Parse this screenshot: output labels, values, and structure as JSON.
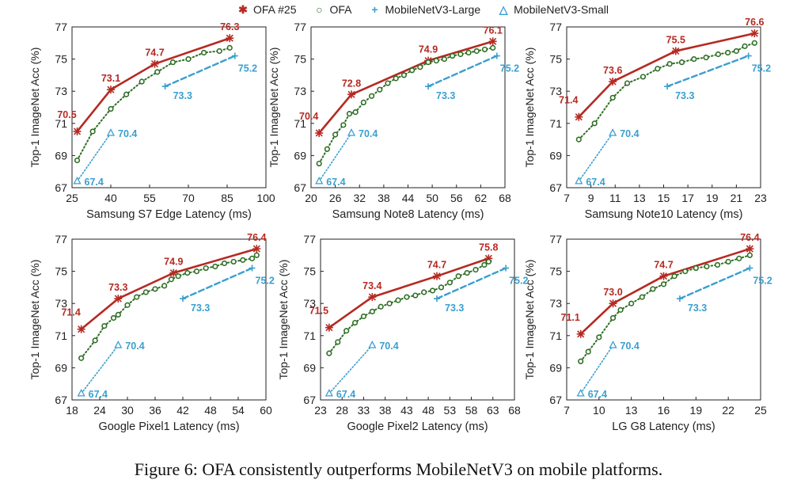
{
  "legend": {
    "ofa25": "OFA #25",
    "ofa": "OFA",
    "mbv3_large": "MobileNetV3-Large",
    "mbv3_small": "MobileNetV3-Small"
  },
  "colors": {
    "ofa25": "#b52a22",
    "ofa": "#2e6f24",
    "mbv3_large": "#3a9fcf",
    "mbv3_small": "#3a9fcf",
    "axis": "#222222"
  },
  "caption": "Figure 6: OFA consistently outperforms MobileNetV3 on mobile platforms.",
  "chart_data": [
    {
      "type": "line",
      "xlabel": "Samsung S7 Edge Latency (ms)",
      "ylabel": "Top-1 ImageNet Acc (%)",
      "xlim": [
        25,
        100
      ],
      "ylim": [
        67,
        77
      ],
      "xticks": [
        25,
        40,
        55,
        70,
        85,
        100
      ],
      "yticks": [
        67,
        69,
        71,
        73,
        75,
        77
      ],
      "series": [
        {
          "name": "OFA #25",
          "x": [
            27,
            40,
            57,
            86
          ],
          "y": [
            70.5,
            73.1,
            74.7,
            76.3
          ],
          "labels": [
            "70.5",
            "73.1",
            "74.7",
            "76.3"
          ]
        },
        {
          "name": "OFA",
          "x": [
            27,
            33,
            40,
            46,
            52,
            58,
            64,
            70,
            76,
            82,
            86
          ],
          "y": [
            68.7,
            70.5,
            71.9,
            72.8,
            73.6,
            74.2,
            74.8,
            75.0,
            75.4,
            75.5,
            75.7
          ],
          "labels": []
        },
        {
          "name": "MobileNetV3-Large",
          "x": [
            61,
            88
          ],
          "y": [
            73.3,
            75.2
          ],
          "labels": [
            "73.3",
            "75.2"
          ]
        },
        {
          "name": "MobileNetV3-Small",
          "x": [
            27,
            40
          ],
          "y": [
            67.4,
            70.4
          ],
          "labels": [
            "67.4",
            "70.4"
          ]
        }
      ]
    },
    {
      "type": "line",
      "xlabel": "Samsung Note8 Latency (ms)",
      "ylabel": "Top-1 ImageNet Acc (%)",
      "xlim": [
        20,
        68
      ],
      "ylim": [
        67,
        77
      ],
      "xticks": [
        20,
        26,
        32,
        38,
        44,
        50,
        56,
        62,
        68
      ],
      "yticks": [
        67,
        69,
        71,
        73,
        75,
        77
      ],
      "series": [
        {
          "name": "OFA #25",
          "x": [
            22,
            30,
            49,
            65
          ],
          "y": [
            70.4,
            72.8,
            74.9,
            76.1
          ],
          "labels": [
            "70.4",
            "72.8",
            "74.9",
            "76.1"
          ]
        },
        {
          "name": "OFA",
          "x": [
            22,
            24,
            26,
            28,
            29.5,
            31,
            33,
            35,
            37,
            39,
            41,
            43,
            45,
            47,
            49,
            51,
            53,
            55,
            57,
            59,
            61,
            63,
            65
          ],
          "y": [
            68.5,
            69.4,
            70.3,
            70.9,
            71.6,
            71.7,
            72.3,
            72.7,
            73.1,
            73.5,
            73.8,
            74.0,
            74.3,
            74.5,
            74.8,
            74.9,
            75.0,
            75.2,
            75.3,
            75.4,
            75.5,
            75.6,
            75.7
          ],
          "labels": []
        },
        {
          "name": "MobileNetV3-Large",
          "x": [
            49,
            66
          ],
          "y": [
            73.3,
            75.2
          ],
          "labels": [
            "73.3",
            "75.2"
          ]
        },
        {
          "name": "MobileNetV3-Small",
          "x": [
            22,
            30
          ],
          "y": [
            67.4,
            70.4
          ],
          "labels": [
            "67.4",
            "70.4"
          ]
        }
      ]
    },
    {
      "type": "line",
      "xlabel": "Samsung Note10 Latency (ms)",
      "ylabel": "Top-1 ImageNet Acc (%)",
      "xlim": [
        7,
        23
      ],
      "ylim": [
        67,
        77
      ],
      "xticks": [
        7,
        9,
        11,
        13,
        15,
        17,
        19,
        21,
        23
      ],
      "yticks": [
        67,
        69,
        71,
        73,
        75,
        77
      ],
      "series": [
        {
          "name": "OFA #25",
          "x": [
            8,
            10.8,
            16,
            22.5
          ],
          "y": [
            71.4,
            73.6,
            75.5,
            76.6
          ],
          "labels": [
            "71.4",
            "73.6",
            "75.5",
            "76.6"
          ]
        },
        {
          "name": "OFA",
          "x": [
            8,
            9.3,
            10.8,
            12,
            13.3,
            14.5,
            15.5,
            16.5,
            17.5,
            18.5,
            19.5,
            20.3,
            21,
            21.7,
            22.5
          ],
          "y": [
            70.0,
            71.0,
            72.6,
            73.5,
            73.9,
            74.4,
            74.7,
            74.8,
            75.0,
            75.1,
            75.3,
            75.4,
            75.5,
            75.8,
            76.0
          ],
          "labels": []
        },
        {
          "name": "MobileNetV3-Large",
          "x": [
            15.3,
            22
          ],
          "y": [
            73.3,
            75.2
          ],
          "labels": [
            "73.3",
            "75.2"
          ]
        },
        {
          "name": "MobileNetV3-Small",
          "x": [
            8,
            10.8
          ],
          "y": [
            67.4,
            70.4
          ],
          "labels": [
            "67.4",
            "70.4"
          ]
        }
      ]
    },
    {
      "type": "line",
      "xlabel": "Google Pixel1 Latency (ms)",
      "ylabel": "Top-1 ImageNet Acc (%)",
      "xlim": [
        18,
        60
      ],
      "ylim": [
        67,
        77
      ],
      "xticks": [
        18,
        24,
        30,
        36,
        42,
        48,
        54,
        60
      ],
      "yticks": [
        67,
        69,
        71,
        73,
        75,
        77
      ],
      "series": [
        {
          "name": "OFA #25",
          "x": [
            20,
            28,
            40,
            58
          ],
          "y": [
            71.4,
            73.3,
            74.9,
            76.4
          ],
          "labels": [
            "71.4",
            "73.3",
            "74.9",
            "76.4"
          ]
        },
        {
          "name": "OFA",
          "x": [
            20,
            23,
            25,
            27,
            28,
            30,
            32,
            34,
            36,
            38,
            39.5,
            41,
            43,
            45,
            47,
            49,
            51,
            53,
            55,
            57,
            58
          ],
          "y": [
            69.6,
            70.7,
            71.6,
            72.1,
            72.3,
            72.9,
            73.4,
            73.7,
            73.9,
            74.1,
            74.5,
            74.7,
            74.9,
            75.0,
            75.2,
            75.3,
            75.5,
            75.6,
            75.7,
            75.8,
            76.0
          ],
          "labels": []
        },
        {
          "name": "MobileNetV3-Large",
          "x": [
            42,
            57
          ],
          "y": [
            73.3,
            75.2
          ],
          "labels": [
            "73.3",
            "75.2"
          ]
        },
        {
          "name": "MobileNetV3-Small",
          "x": [
            20,
            28
          ],
          "y": [
            67.4,
            70.4
          ],
          "labels": [
            "67.4",
            "70.4"
          ]
        }
      ]
    },
    {
      "type": "line",
      "xlabel": "Google Pixel2 Latency (ms)",
      "ylabel": "Top-1 ImageNet Acc (%)",
      "xlim": [
        23,
        68
      ],
      "ylim": [
        67,
        77
      ],
      "xticks": [
        23,
        28,
        33,
        38,
        43,
        48,
        53,
        58,
        63,
        68
      ],
      "yticks": [
        67,
        69,
        71,
        73,
        75,
        77
      ],
      "series": [
        {
          "name": "OFA #25",
          "x": [
            25,
            35,
            50,
            62
          ],
          "y": [
            71.5,
            73.4,
            74.7,
            75.8
          ],
          "labels": [
            "71.5",
            "73.4",
            "74.7",
            "75.8"
          ]
        },
        {
          "name": "OFA",
          "x": [
            25,
            27,
            29,
            31,
            33,
            35,
            37,
            39,
            41,
            43,
            45,
            47,
            49,
            51,
            53,
            55,
            57,
            59,
            61,
            62
          ],
          "y": [
            69.9,
            70.6,
            71.3,
            71.8,
            72.2,
            72.5,
            72.8,
            73.0,
            73.2,
            73.4,
            73.5,
            73.7,
            73.8,
            74.0,
            74.3,
            74.7,
            74.9,
            75.1,
            75.4,
            75.6
          ],
          "labels": []
        },
        {
          "name": "MobileNetV3-Large",
          "x": [
            50,
            66
          ],
          "y": [
            73.3,
            75.2
          ],
          "labels": [
            "73.3",
            "75.2"
          ]
        },
        {
          "name": "MobileNetV3-Small",
          "x": [
            25,
            35
          ],
          "y": [
            67.4,
            70.4
          ],
          "labels": [
            "67.4",
            "70.4"
          ]
        }
      ]
    },
    {
      "type": "line",
      "xlabel": "LG G8 Latency (ms)",
      "ylabel": "Top-1 ImageNet Acc (%)",
      "xlim": [
        7,
        25
      ],
      "ylim": [
        67,
        77
      ],
      "xticks": [
        7,
        10,
        13,
        16,
        19,
        22,
        25
      ],
      "yticks": [
        67,
        69,
        71,
        73,
        75,
        77
      ],
      "series": [
        {
          "name": "OFA #25",
          "x": [
            8.3,
            11.3,
            16,
            24
          ],
          "y": [
            71.1,
            73.0,
            74.7,
            76.4
          ],
          "labels": [
            "71.1",
            "73.0",
            "74.7",
            "76.4"
          ]
        },
        {
          "name": "OFA",
          "x": [
            8.3,
            9,
            10,
            11.3,
            12,
            13,
            14,
            15,
            16,
            17,
            18,
            19,
            20,
            21,
            22,
            23,
            24
          ],
          "y": [
            69.4,
            70.0,
            70.9,
            72.1,
            72.6,
            73.0,
            73.4,
            73.9,
            74.2,
            74.7,
            75.0,
            75.2,
            75.3,
            75.4,
            75.6,
            75.8,
            76.0
          ],
          "labels": []
        },
        {
          "name": "MobileNetV3-Large",
          "x": [
            17.5,
            24
          ],
          "y": [
            73.3,
            75.2
          ],
          "labels": [
            "73.3",
            "75.2"
          ]
        },
        {
          "name": "MobileNetV3-Small",
          "x": [
            8.3,
            11.3
          ],
          "y": [
            67.4,
            70.4
          ],
          "labels": [
            "67.4",
            "70.4"
          ]
        }
      ]
    }
  ]
}
